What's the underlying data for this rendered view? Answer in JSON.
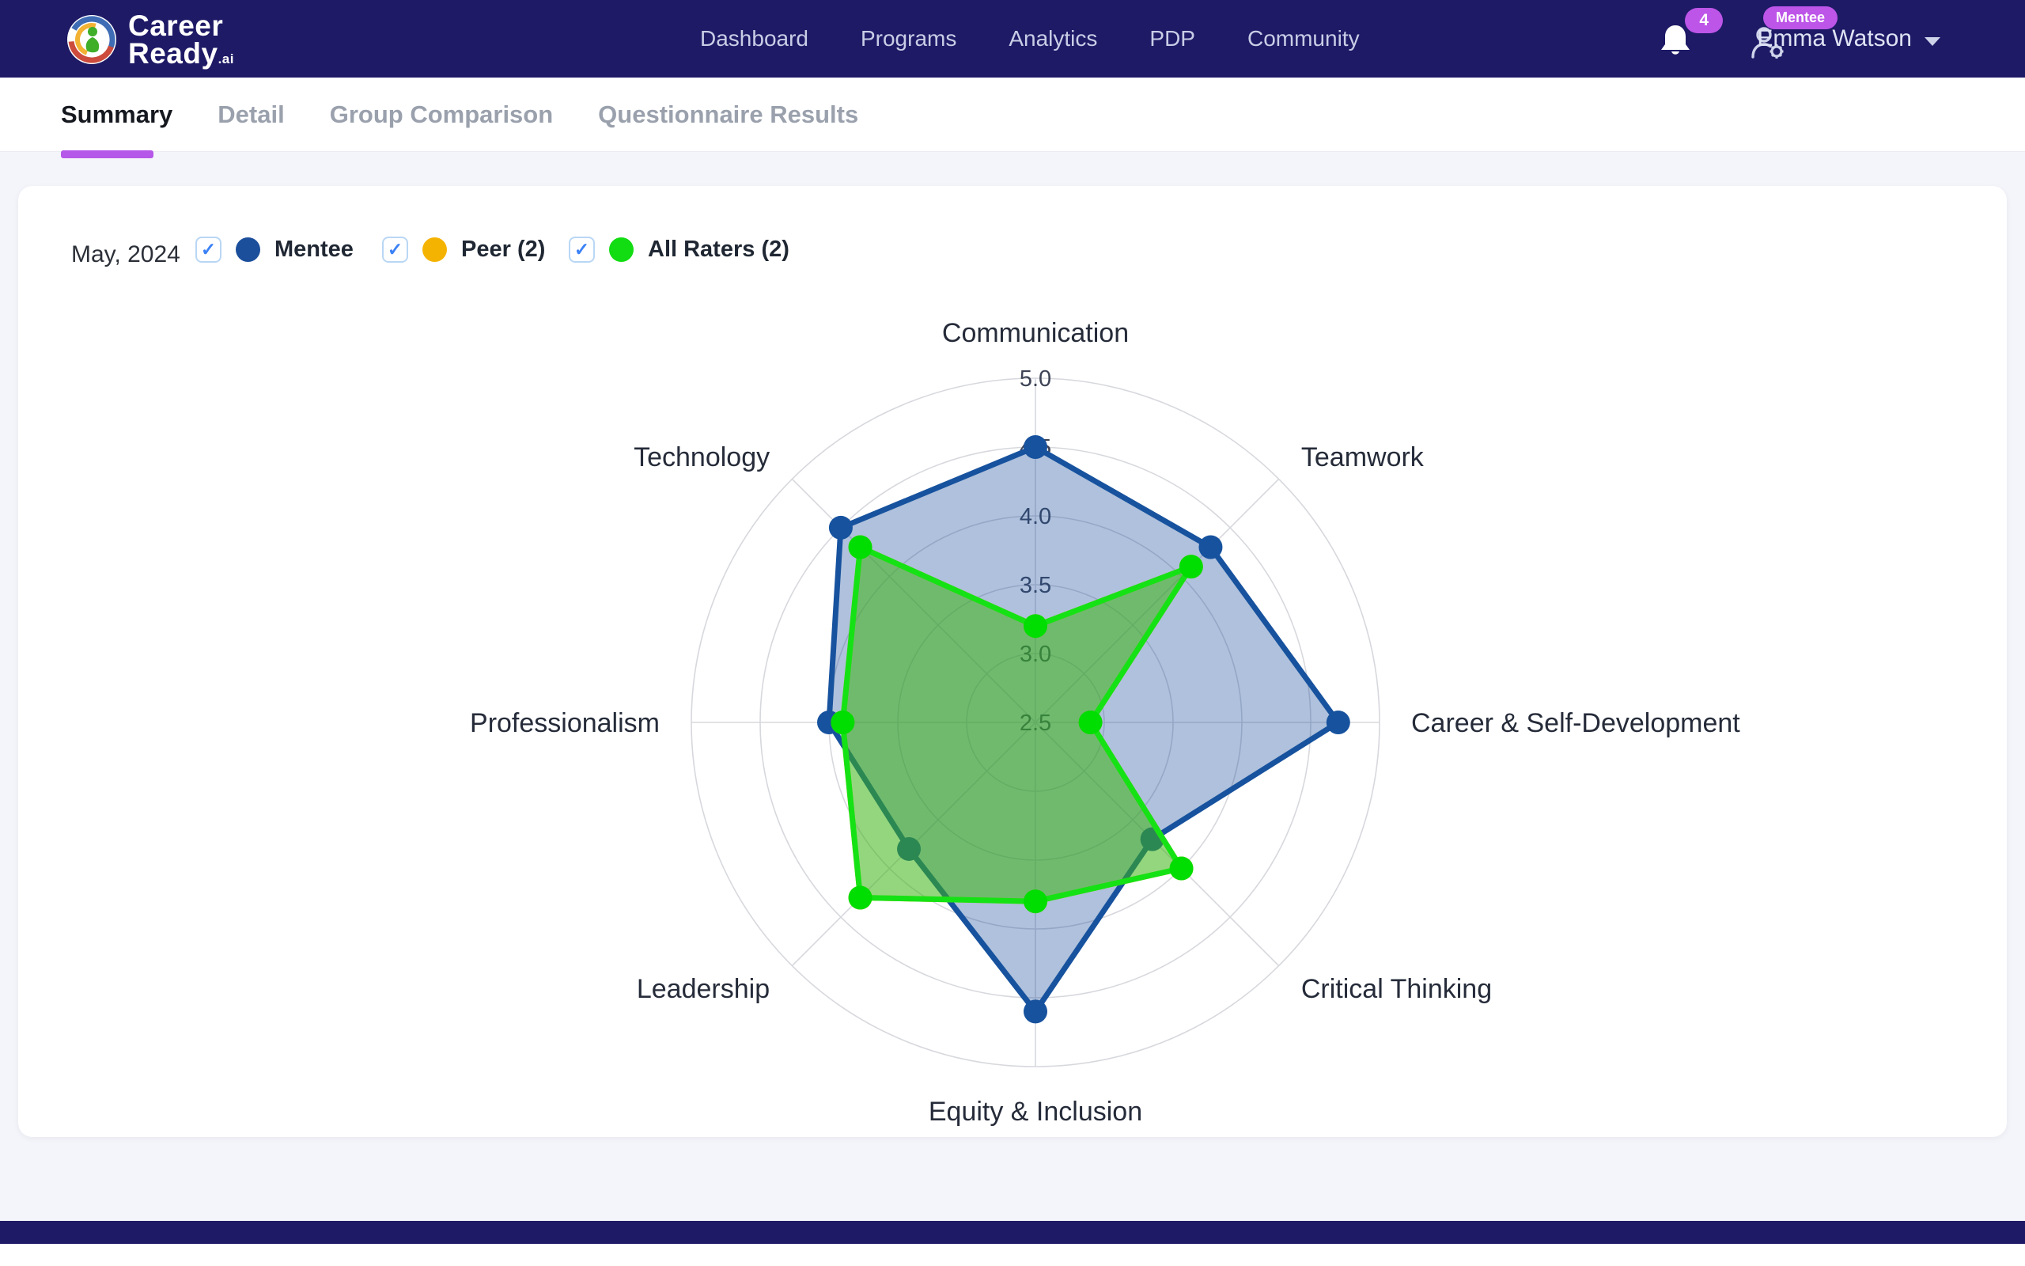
{
  "header": {
    "logo": {
      "line1": "Career",
      "line2": "Ready",
      "suffix": ".ai"
    },
    "nav": [
      {
        "label": "Dashboard"
      },
      {
        "label": "Programs"
      },
      {
        "label": "Analytics"
      },
      {
        "label": "PDP"
      },
      {
        "label": "Community"
      }
    ],
    "notification_count": "4",
    "role_badge": "Mentee",
    "user_name": "Emma Watson"
  },
  "tabs": {
    "items": [
      {
        "label": "Summary",
        "active": true
      },
      {
        "label": "Detail",
        "active": false
      },
      {
        "label": "Group Comparison",
        "active": false
      },
      {
        "label": "Questionnaire Results",
        "active": false
      }
    ]
  },
  "filters": {
    "period_label": "May, 2024",
    "series": [
      {
        "label": "Mentee",
        "checked": true,
        "check_glyph": "✓",
        "color": "#1b4e9b"
      },
      {
        "label": "Peer (2)",
        "checked": true,
        "check_glyph": "✓",
        "color": "#f5b301"
      },
      {
        "label": "All Raters (2)",
        "checked": true,
        "check_glyph": "✓",
        "color": "#12dc12"
      }
    ]
  },
  "chart_data": {
    "type": "radar",
    "categories": [
      "Communication",
      "Teamwork",
      "Career & Self-Development",
      "Critical Thinking",
      "Equity & Inclusion",
      "Leadership",
      "Professionalism",
      "Technology"
    ],
    "scale": {
      "min": 2.5,
      "max": 5.0,
      "step": 0.5,
      "tick_labels": [
        "2.5",
        "3.0",
        "3.5",
        "4.0",
        "4.5",
        "5.0"
      ]
    },
    "grid": true,
    "legend_position": "top-left",
    "series": [
      {
        "name": "Mentee",
        "values": [
          4.5,
          4.3,
          4.7,
          3.7,
          4.6,
          3.8,
          4.0,
          4.5
        ],
        "line_color": "#17529e",
        "fill_color": "rgba(27,78,155,0.35)",
        "point_color": "#17529e"
      },
      {
        "name": "Peer (2)",
        "values": [
          3.2,
          4.1,
          2.9,
          4.0,
          3.8,
          4.3,
          3.9,
          4.3
        ],
        "line_color": "#f5b301",
        "fill_color": "none",
        "point_color": "#f5b301"
      },
      {
        "name": "All Raters (2)",
        "values": [
          3.2,
          4.1,
          2.9,
          4.0,
          3.8,
          4.3,
          3.9,
          4.3
        ],
        "line_color": "#15e215",
        "fill_color": "rgba(60,180,20,0.55)",
        "point_color": "#00dd00"
      }
    ]
  }
}
